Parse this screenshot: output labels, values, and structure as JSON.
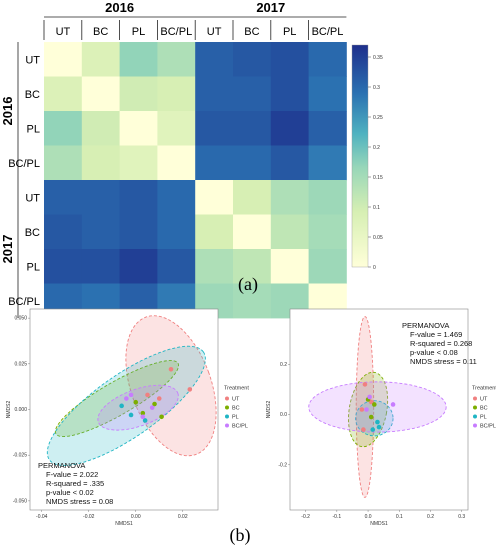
{
  "captions": {
    "a": "(a)",
    "b": "(b)"
  },
  "chart_data": [
    {
      "type": "heatmap",
      "row_groups": [
        "2016",
        "2017"
      ],
      "col_groups": [
        "2016",
        "2017"
      ],
      "categories": [
        "UT",
        "BC",
        "PL",
        "BC/PL",
        "UT",
        "BC",
        "PL",
        "BC/PL"
      ],
      "values": [
        [
          0.0,
          0.08,
          0.17,
          0.14,
          0.31,
          0.32,
          0.33,
          0.3
        ],
        [
          0.08,
          0.0,
          0.1,
          0.09,
          0.31,
          0.31,
          0.33,
          0.29
        ],
        [
          0.17,
          0.1,
          0.0,
          0.07,
          0.32,
          0.32,
          0.35,
          0.31
        ],
        [
          0.14,
          0.09,
          0.07,
          0.0,
          0.3,
          0.3,
          0.32,
          0.28
        ],
        [
          0.31,
          0.31,
          0.32,
          0.3,
          0.0,
          0.09,
          0.14,
          0.16
        ],
        [
          0.32,
          0.31,
          0.32,
          0.3,
          0.09,
          0.0,
          0.12,
          0.15
        ],
        [
          0.33,
          0.33,
          0.35,
          0.32,
          0.14,
          0.12,
          0.0,
          0.16
        ],
        [
          0.3,
          0.29,
          0.31,
          0.28,
          0.16,
          0.15,
          0.16,
          0.0
        ]
      ],
      "colorbar": {
        "min": 0,
        "max": 0.37,
        "ticks": [
          "0",
          "0.05",
          "0.1",
          "0.15",
          "0.2",
          "0.25",
          "0.3",
          "0.35"
        ]
      }
    },
    {
      "type": "scatter",
      "xlabel": "NMDS1",
      "ylabel": "NMDS2",
      "xlim": [
        -0.045,
        0.035
      ],
      "ylim": [
        -0.055,
        0.055
      ],
      "x_ticks": [
        "-0.04",
        "-0.02",
        "0.00",
        "0.02"
      ],
      "y_ticks": [
        "-0.050",
        "-0.025",
        "0.000",
        "0.025",
        "0.050"
      ],
      "legend_title": "Treatment",
      "legend_position": "right",
      "series": [
        {
          "name": "UT",
          "color": "#f08080",
          "points": [
            [
              0.015,
              0.022
            ],
            [
              0.023,
              0.011
            ],
            [
              0.01,
              0.006
            ],
            [
              0.005,
              0.008
            ]
          ],
          "ellipse": {
            "cx": 0.015,
            "cy": 0.013,
            "rx": 0.017,
            "ry": 0.04,
            "angle": -20
          }
        },
        {
          "name": "BC",
          "color": "#7cae00",
          "points": [
            [
              0.0,
              0.004
            ],
            [
              0.008,
              0.003
            ],
            [
              0.003,
              -0.002
            ],
            [
              0.011,
              -0.004
            ]
          ],
          "ellipse": {
            "cx": -0.008,
            "cy": 0.006,
            "rx": 0.03,
            "ry": 0.009,
            "angle": -30
          }
        },
        {
          "name": "PL",
          "color": "#1fb5c4",
          "points": [
            [
              -0.006,
              0.002
            ],
            [
              -0.002,
              -0.003
            ],
            [
              0.004,
              -0.006
            ]
          ],
          "ellipse": {
            "cx": -0.004,
            "cy": 0.002,
            "rx": 0.04,
            "ry": 0.017,
            "angle": -35
          }
        },
        {
          "name": "BC/PL",
          "color": "#c77cff",
          "points": [
            [
              -0.002,
              0.008
            ],
            [
              -0.004,
              0.006
            ],
            [
              0.007,
              0.001
            ],
            [
              0.003,
              -0.004
            ]
          ],
          "ellipse": {
            "cx": 0.001,
            "cy": 0.001,
            "rx": 0.018,
            "ry": 0.01,
            "angle": -20
          }
        }
      ],
      "annotation": [
        "PERMANOVA",
        "F-value = 2.022",
        "R-squared = .335",
        "p-value < 0.02",
        "NMDS stress = 0.08"
      ]
    },
    {
      "type": "scatter",
      "xlabel": "NMDS1",
      "ylabel": "NMDS2",
      "xlim": [
        -0.25,
        0.32
      ],
      "ylim": [
        -0.38,
        0.42
      ],
      "x_ticks": [
        "-0.2",
        "-0.1",
        "0.0",
        "0.1",
        "0.2",
        "0.3"
      ],
      "y_ticks": [
        "-0.2",
        "0.0",
        "0.2"
      ],
      "legend_title": "Treatment",
      "legend_position": "right",
      "series": [
        {
          "name": "UT",
          "color": "#f08080",
          "points": [
            [
              -0.01,
              0.12
            ],
            [
              -0.02,
              0.02
            ],
            [
              0.01,
              0.05
            ],
            [
              -0.015,
              -0.06
            ]
          ],
          "ellipse": {
            "cx": -0.01,
            "cy": 0.03,
            "rx": 0.028,
            "ry": 0.36,
            "angle": 0
          }
        },
        {
          "name": "BC",
          "color": "#7cae00",
          "points": [
            [
              0.0,
              0.06
            ],
            [
              0.02,
              0.04
            ],
            [
              0.01,
              -0.01
            ]
          ],
          "ellipse": {
            "cx": 0.0,
            "cy": 0.02,
            "rx": 0.06,
            "ry": 0.15,
            "angle": 10
          }
        },
        {
          "name": "PL",
          "color": "#1fb5c4",
          "points": [
            [
              0.03,
              -0.03
            ],
            [
              0.035,
              -0.05
            ],
            [
              0.015,
              -0.06
            ]
          ],
          "ellipse": {
            "cx": 0.02,
            "cy": -0.015,
            "rx": 0.06,
            "ry": 0.07,
            "angle": 0
          }
        },
        {
          "name": "BC/PL",
          "color": "#c77cff",
          "points": [
            [
              0.005,
              0.07
            ],
            [
              0.08,
              0.04
            ],
            [
              -0.005,
              0.02
            ]
          ],
          "ellipse": {
            "cx": 0.03,
            "cy": 0.03,
            "rx": 0.22,
            "ry": 0.1,
            "angle": 0
          }
        }
      ],
      "annotation": [
        "PERMANOVA",
        "F-value = 1.469",
        "R-squared = 0.268",
        "p-value < 0.08",
        "NMDS stress = 0.11"
      ]
    }
  ]
}
